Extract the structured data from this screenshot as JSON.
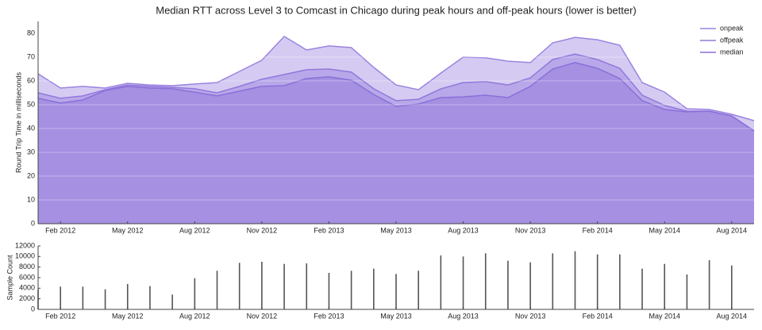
{
  "chart_data": [
    {
      "type": "area",
      "title": "Median RTT across Level 3 to Comcast in Chicago during peak hours and off-peak hours (lower is better)",
      "ylabel": "Round Trip Time in milliseconds",
      "x": [
        "2012-01",
        "2012-02",
        "2012-03",
        "2012-04",
        "2012-05",
        "2012-06",
        "2012-07",
        "2012-08",
        "2012-09",
        "2012-10",
        "2012-11",
        "2012-12",
        "2013-01",
        "2013-02",
        "2013-03",
        "2013-04",
        "2013-05",
        "2013-06",
        "2013-07",
        "2013-08",
        "2013-09",
        "2013-10",
        "2013-11",
        "2013-12",
        "2014-01",
        "2014-02",
        "2014-03",
        "2014-04",
        "2014-05",
        "2014-06",
        "2014-07",
        "2014-08",
        "2014-09"
      ],
      "series": [
        {
          "name": "onpeak",
          "color": "#9a83e0",
          "values": [
            63,
            57,
            57.7,
            57,
            59,
            58.3,
            58,
            58.7,
            59.3,
            64,
            68.7,
            78.7,
            73,
            74.7,
            74,
            65.7,
            58.3,
            56.3,
            63.3,
            70,
            69.7,
            68.3,
            67.7,
            76,
            78.3,
            77.3,
            75,
            59.3,
            55.3,
            48.3,
            48,
            46,
            43.3
          ]
        },
        {
          "name": "offpeak",
          "color": "#9278dd",
          "values": [
            55,
            52.7,
            53.7,
            56.3,
            58.3,
            57.7,
            57.3,
            56.7,
            55,
            57.7,
            60.7,
            62.7,
            64.7,
            65,
            63.7,
            56.7,
            51.7,
            52.3,
            56.7,
            59.3,
            59.7,
            58.3,
            61.3,
            69,
            71.3,
            69,
            65.3,
            54,
            49.7,
            47.3,
            47.3,
            45.3,
            39
          ]
        },
        {
          "name": "median",
          "color": "#8a6fd9",
          "values": [
            52.7,
            50.7,
            52,
            56,
            57.7,
            57,
            56.7,
            55.3,
            53.7,
            55.7,
            57.7,
            58,
            61,
            61.7,
            60.3,
            54.3,
            49.3,
            50.3,
            53,
            53.3,
            54,
            53,
            57.7,
            65,
            67.7,
            65.3,
            61,
            51.7,
            48,
            47,
            47.3,
            45.3,
            39
          ]
        }
      ],
      "xlim": [
        "2012-01",
        "2014-09"
      ],
      "xticks": [
        {
          "value": "2012-02",
          "label": "Feb 2012"
        },
        {
          "value": "2012-05",
          "label": "May 2012"
        },
        {
          "value": "2012-08",
          "label": "Aug 2012"
        },
        {
          "value": "2012-11",
          "label": "Nov 2012"
        },
        {
          "value": "2013-02",
          "label": "Feb 2013"
        },
        {
          "value": "2013-05",
          "label": "May 2013"
        },
        {
          "value": "2013-08",
          "label": "Aug 2013"
        },
        {
          "value": "2013-11",
          "label": "Nov 2013"
        },
        {
          "value": "2014-02",
          "label": "Feb 2014"
        },
        {
          "value": "2014-05",
          "label": "May 2014"
        },
        {
          "value": "2014-08",
          "label": "Aug 2014"
        }
      ],
      "ylim": [
        0,
        85
      ],
      "yticks": [
        0,
        10,
        20,
        30,
        40,
        50,
        60,
        70,
        80
      ],
      "grid": true,
      "legend": "upper-right"
    },
    {
      "type": "bar",
      "ylabel": "Sample Count",
      "color": "#555555",
      "x": [
        "2012-01",
        "2012-02",
        "2012-03",
        "2012-04",
        "2012-05",
        "2012-06",
        "2012-07",
        "2012-08",
        "2012-09",
        "2012-10",
        "2012-11",
        "2012-12",
        "2013-01",
        "2013-02",
        "2013-03",
        "2013-04",
        "2013-05",
        "2013-06",
        "2013-07",
        "2013-08",
        "2013-09",
        "2013-10",
        "2013-11",
        "2013-12",
        "2014-01",
        "2014-02",
        "2014-03",
        "2014-04",
        "2014-05",
        "2014-06",
        "2014-07",
        "2014-08"
      ],
      "values": [
        3800,
        4300,
        4300,
        3800,
        4800,
        4400,
        2800,
        5900,
        7300,
        8800,
        9000,
        8600,
        8700,
        6900,
        7300,
        7700,
        6700,
        7300,
        10200,
        10000,
        10600,
        9200,
        8900,
        10600,
        11000,
        10400,
        10400,
        7700,
        8600,
        6600,
        9300,
        8300
      ],
      "xlim": [
        "2012-01",
        "2014-09"
      ],
      "xticks": [
        {
          "value": "2012-02",
          "label": "Feb 2012"
        },
        {
          "value": "2012-05",
          "label": "May 2012"
        },
        {
          "value": "2012-08",
          "label": "Aug 2012"
        },
        {
          "value": "2012-11",
          "label": "Nov 2012"
        },
        {
          "value": "2013-02",
          "label": "Feb 2013"
        },
        {
          "value": "2013-05",
          "label": "May 2013"
        },
        {
          "value": "2013-08",
          "label": "Aug 2013"
        },
        {
          "value": "2013-11",
          "label": "Nov 2013"
        },
        {
          "value": "2014-02",
          "label": "Feb 2014"
        },
        {
          "value": "2014-05",
          "label": "May 2014"
        },
        {
          "value": "2014-08",
          "label": "Aug 2014"
        }
      ],
      "ylim": [
        0,
        12000
      ],
      "yticks": [
        0,
        2000,
        4000,
        6000,
        8000,
        10000,
        12000
      ]
    }
  ]
}
